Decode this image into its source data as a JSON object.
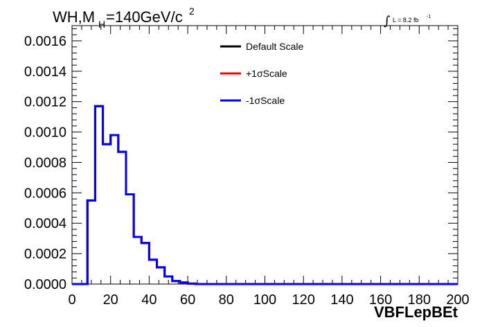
{
  "chart_data": {
    "type": "line",
    "title": {
      "main": "WH,M",
      "subscript": "H",
      "rest": "=140GeV/c",
      "superscript": "2"
    },
    "lumi": {
      "integral": "∫",
      "text": "L = 8.2 fb",
      "superscript": "-1"
    },
    "xlabel": "VBFLepBEt",
    "ylabel": "",
    "xlim": [
      0,
      200
    ],
    "ylim": [
      0,
      0.0017
    ],
    "x_ticks": [
      "0",
      "20",
      "40",
      "60",
      "80",
      "100",
      "120",
      "140",
      "160",
      "180",
      "200"
    ],
    "y_ticks": [
      "0.0000",
      "0.0002",
      "0.0004",
      "0.0006",
      "0.0008",
      "0.0010",
      "0.0012",
      "0.0014",
      "0.0016"
    ],
    "bin_edges": [
      0,
      4,
      8,
      12,
      16,
      20,
      24,
      28,
      32,
      36,
      40,
      44,
      48,
      52,
      56,
      60,
      64,
      200
    ],
    "legend_position": "top-center",
    "series": [
      {
        "name": "Default Scale",
        "color": "#000000",
        "values": [
          0,
          0,
          0.00055,
          0.00117,
          0.00092,
          0.00098,
          0.00087,
          0.00059,
          0.00031,
          0.00027,
          0.00016,
          0.00011,
          5e-05,
          2e-05,
          1e-05,
          3e-06,
          0
        ]
      },
      {
        "name": "+1σScale",
        "color": "#ff0000",
        "values": [
          0,
          0,
          0.00055,
          0.00117,
          0.00092,
          0.00098,
          0.00087,
          0.00059,
          0.00031,
          0.00027,
          0.00016,
          0.00011,
          5e-05,
          2e-05,
          1e-05,
          3e-06,
          0
        ]
      },
      {
        "name": "-1σScale",
        "color": "#0000ff",
        "values": [
          0,
          0,
          0.00055,
          0.00117,
          0.00092,
          0.00098,
          0.00087,
          0.00059,
          0.00031,
          0.00027,
          0.00016,
          0.00011,
          5e-05,
          2e-05,
          1e-05,
          3e-06,
          0
        ]
      }
    ]
  }
}
